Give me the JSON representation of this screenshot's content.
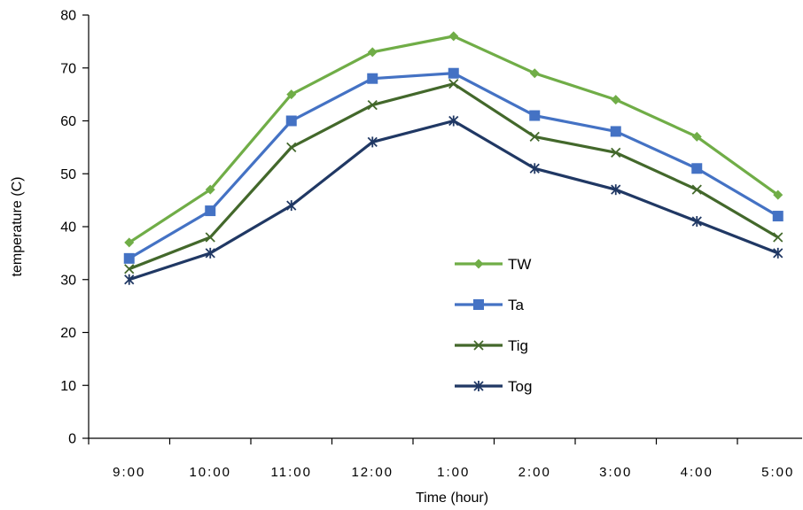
{
  "chart_data": {
    "type": "line",
    "title": "",
    "xlabel": "Time (hour)",
    "ylabel": "temperature (C)",
    "ylim": [
      0,
      80
    ],
    "yticks": [
      0,
      10,
      20,
      30,
      40,
      50,
      60,
      70,
      80
    ],
    "grid": false,
    "legend_position": "center",
    "categories": [
      "9:00",
      "10:00",
      "11:00",
      "12:00",
      "1:00",
      "2:00",
      "3:00",
      "4:00",
      "5:00"
    ],
    "series": [
      {
        "name": "TW",
        "color": "#70AD47",
        "marker": "diamond",
        "values": [
          37,
          47,
          65,
          73,
          76,
          69,
          64,
          57,
          46
        ]
      },
      {
        "name": "Ta",
        "color": "#4472C4",
        "marker": "square",
        "values": [
          34,
          43,
          60,
          68,
          69,
          61,
          58,
          51,
          42
        ]
      },
      {
        "name": "Tig",
        "color": "#43682B",
        "marker": "x",
        "values": [
          32,
          38,
          55,
          63,
          67,
          57,
          54,
          47,
          38
        ]
      },
      {
        "name": "Tog",
        "color": "#203864",
        "marker": "asterisk",
        "values": [
          30,
          35,
          44,
          56,
          60,
          51,
          47,
          41,
          35
        ]
      }
    ]
  }
}
